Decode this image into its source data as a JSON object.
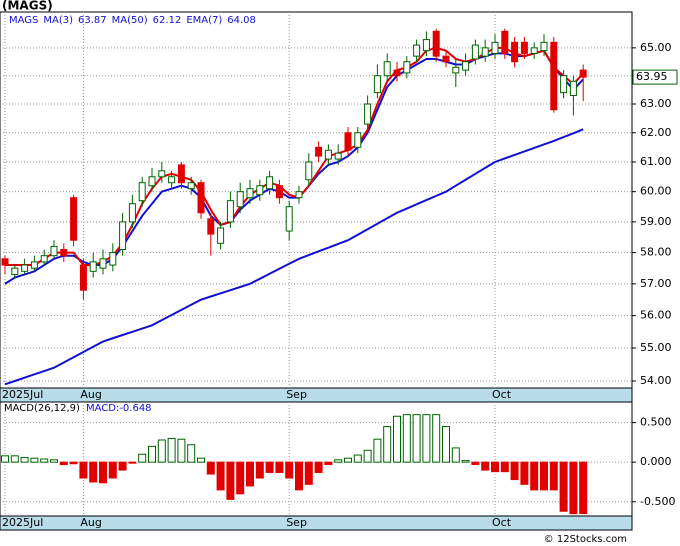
{
  "chart_data": {
    "type": "candlestick",
    "title": "(MAGS)",
    "ticker": "MAGS",
    "categories": [
      "2025Jul",
      null,
      null,
      null,
      null,
      null,
      null,
      null,
      "Aug",
      null,
      null,
      null,
      null,
      null,
      null,
      null,
      null,
      null,
      null,
      null,
      null,
      null,
      null,
      null,
      null,
      null,
      null,
      null,
      null,
      "Sep",
      null,
      null,
      null,
      null,
      null,
      null,
      null,
      null,
      null,
      null,
      null,
      null,
      null,
      null,
      null,
      null,
      null,
      null,
      null,
      null,
      "Oct",
      null,
      null,
      null,
      null,
      null,
      null,
      null,
      null,
      null
    ],
    "open": [
      57.8,
      57.3,
      57.4,
      57.5,
      57.7,
      57.9,
      58.1,
      59.8,
      57.6,
      57.4,
      57.5,
      57.6,
      58.1,
      59.0,
      59.7,
      60.2,
      60.5,
      60.3,
      60.9,
      60.1,
      60.3,
      59.1,
      58.3,
      59.0,
      59.5,
      59.8,
      59.9,
      60.1,
      60.2,
      58.7,
      59.8,
      60.4,
      61.5,
      61.1,
      61.1,
      62.0,
      61.5,
      62.3,
      63.4,
      64.0,
      64.2,
      64.1,
      64.7,
      64.9,
      65.6,
      64.7,
      64.1,
      64.2,
      64.6,
      64.7,
      64.8,
      65.6,
      65.2,
      65.2,
      64.8,
      64.9,
      65.2,
      63.4,
      63.3,
      64.2
    ],
    "high": [
      57.9,
      57.6,
      57.8,
      57.9,
      58.1,
      58.4,
      58.3,
      59.9,
      57.8,
      58.0,
      58.1,
      58.3,
      59.3,
      59.9,
      60.5,
      60.8,
      61.0,
      60.7,
      61.0,
      60.5,
      60.4,
      59.3,
      59.0,
      60.0,
      60.3,
      60.4,
      60.4,
      60.7,
      60.4,
      59.7,
      60.2,
      61.3,
      61.7,
      61.6,
      61.6,
      62.2,
      62.2,
      63.3,
      64.4,
      64.8,
      64.5,
      64.7,
      65.3,
      65.6,
      65.7,
      64.9,
      64.6,
      64.8,
      65.3,
      65.3,
      65.5,
      65.7,
      65.4,
      65.4,
      65.2,
      65.5,
      65.4,
      64.2,
      64.0,
      64.4
    ],
    "low": [
      57.3,
      57.2,
      57.3,
      57.4,
      57.6,
      57.8,
      57.7,
      58.2,
      56.5,
      57.2,
      57.3,
      57.4,
      57.9,
      58.8,
      59.5,
      60.0,
      60.3,
      60.1,
      60.1,
      59.9,
      59.1,
      57.9,
      58.1,
      58.8,
      59.3,
      59.6,
      59.7,
      59.9,
      59.6,
      58.4,
      59.6,
      60.2,
      61.0,
      60.9,
      60.9,
      61.2,
      61.3,
      62.1,
      63.2,
      63.8,
      63.8,
      63.9,
      64.5,
      64.7,
      64.5,
      64.3,
      63.6,
      64.0,
      64.4,
      64.5,
      64.6,
      64.6,
      64.3,
      64.6,
      64.6,
      64.7,
      62.7,
      63.2,
      62.6,
      63.1
    ],
    "close": [
      57.6,
      57.5,
      57.6,
      57.7,
      57.9,
      58.2,
      57.9,
      58.4,
      56.8,
      57.7,
      57.8,
      58.0,
      59.0,
      59.6,
      60.3,
      60.5,
      60.7,
      60.5,
      60.3,
      60.3,
      59.3,
      58.6,
      58.8,
      59.7,
      60.0,
      60.1,
      60.2,
      60.5,
      59.8,
      59.5,
      60.0,
      61.0,
      61.2,
      61.4,
      61.3,
      61.4,
      62.0,
      63.0,
      64.0,
      64.5,
      64.0,
      64.5,
      65.1,
      65.3,
      64.7,
      64.5,
      64.3,
      64.5,
      65.1,
      65.0,
      65.2,
      64.8,
      64.5,
      64.8,
      65.0,
      65.2,
      62.8,
      64.0,
      63.8,
      63.95
    ],
    "up_color": "#006400",
    "down_color": "#e00000",
    "series": [
      {
        "name": "MA(3)",
        "color": "#1010d0",
        "values": [
          57.0,
          57.2,
          57.3,
          57.4,
          57.6,
          57.8,
          57.9,
          57.9,
          57.7,
          57.6,
          57.6,
          57.8,
          58.2,
          58.7,
          59.2,
          59.6,
          60.0,
          60.1,
          60.2,
          60.1,
          59.8,
          59.2,
          58.9,
          59.0,
          59.4,
          59.7,
          59.9,
          60.1,
          60.0,
          59.8,
          59.8,
          60.2,
          60.6,
          60.9,
          61.0,
          61.2,
          61.5,
          62.0,
          62.8,
          63.6,
          64.0,
          64.2,
          64.4,
          64.6,
          64.6,
          64.5,
          64.4,
          64.4,
          64.6,
          64.7,
          64.8,
          64.8,
          64.7,
          64.7,
          64.8,
          64.9,
          64.3,
          63.9,
          63.5,
          63.87
        ]
      },
      {
        "name": "MA(50)",
        "color": "#1010d0",
        "values": [
          53.9,
          54.0,
          54.1,
          54.2,
          54.3,
          54.4,
          54.56,
          54.72,
          54.88,
          55.04,
          55.2,
          55.3,
          55.4,
          55.5,
          55.6,
          55.7,
          55.86,
          56.02,
          56.18,
          56.34,
          56.5,
          56.6,
          56.7,
          56.8,
          56.9,
          57.0,
          57.16,
          57.32,
          57.48,
          57.64,
          57.8,
          57.92,
          58.04,
          58.16,
          58.28,
          58.4,
          58.58,
          58.76,
          58.94,
          59.12,
          59.3,
          59.44,
          59.58,
          59.72,
          59.86,
          60.0,
          60.2,
          60.4,
          60.6,
          60.8,
          61.0,
          61.12,
          61.24,
          61.36,
          61.48,
          61.6,
          61.72,
          61.85,
          61.98,
          62.12
        ]
      },
      {
        "name": "EMA(7)",
        "color": "#e00000",
        "values": [
          57.6,
          57.6,
          57.6,
          57.6,
          57.8,
          58.0,
          58.0,
          58.0,
          57.6,
          57.6,
          57.7,
          57.9,
          58.3,
          58.9,
          59.6,
          60.1,
          60.5,
          60.6,
          60.5,
          60.4,
          60.0,
          59.4,
          58.9,
          59.0,
          59.5,
          59.9,
          60.1,
          60.3,
          60.2,
          59.9,
          59.8,
          60.2,
          60.7,
          61.2,
          61.3,
          61.4,
          61.6,
          62.1,
          63.0,
          63.8,
          64.2,
          64.3,
          64.5,
          64.9,
          65.0,
          64.9,
          64.6,
          64.5,
          64.6,
          64.8,
          65.0,
          65.0,
          64.8,
          64.7,
          64.8,
          64.9,
          64.3,
          64.0,
          63.7,
          64.08
        ]
      }
    ],
    "log_scale": true,
    "ylim": [
      53.79,
      66.31
    ],
    "yticks": [
      {
        "value": 54,
        "label": "54.00"
      },
      {
        "value": 55,
        "label": "55.00"
      },
      {
        "value": 56,
        "label": "56.00"
      },
      {
        "value": 57,
        "label": "57.00"
      },
      {
        "value": 58,
        "label": "58.00"
      },
      {
        "value": 59,
        "label": "59.00"
      },
      {
        "value": 60,
        "label": "60.00"
      },
      {
        "value": 61,
        "label": "61.00"
      },
      {
        "value": 62,
        "label": "62.00"
      },
      {
        "value": 63,
        "label": "63.00"
      },
      {
        "value": 64,
        "label": "64.00"
      },
      {
        "value": 65,
        "label": "65.00"
      }
    ],
    "grid": true,
    "macd": {
      "label": "MACD(26,12,9)",
      "value_label": "MACD:",
      "values": [
        0.08,
        0.08,
        0.06,
        0.05,
        0.04,
        0.03,
        -0.03,
        -0.02,
        -0.2,
        -0.25,
        -0.26,
        -0.2,
        -0.1,
        -0.01,
        0.1,
        0.2,
        0.28,
        0.3,
        0.29,
        0.22,
        0.05,
        -0.15,
        -0.35,
        -0.47,
        -0.4,
        -0.3,
        -0.2,
        -0.13,
        -0.13,
        -0.2,
        -0.35,
        -0.28,
        -0.13,
        -0.03,
        0.03,
        0.05,
        0.09,
        0.15,
        0.29,
        0.45,
        0.58,
        0.6,
        0.6,
        0.6,
        0.6,
        0.45,
        0.18,
        0.02,
        -0.03,
        -0.1,
        -0.12,
        -0.12,
        -0.22,
        -0.28,
        -0.35,
        -0.35,
        -0.35,
        -0.62,
        -0.65,
        -0.648
      ],
      "ylim": [
        -0.68,
        0.76
      ],
      "yticks": [
        {
          "value": 0.5,
          "label": "0.500"
        },
        {
          "value": 0,
          "label": "0.000"
        },
        {
          "value": -0.5,
          "label": "-0.500"
        }
      ]
    },
    "footer": "© 12Stocks.com"
  }
}
